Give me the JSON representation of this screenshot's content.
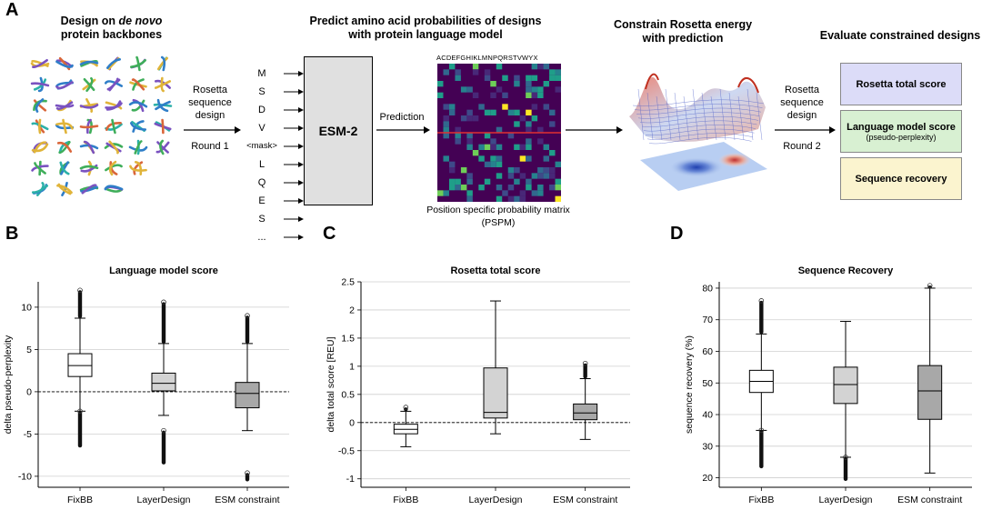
{
  "panel_letters": {
    "a": "A",
    "b": "B",
    "c": "C",
    "d": "D"
  },
  "panel_a": {
    "step1_title_pre": "Design on ",
    "step1_title_em": "de novo",
    "step1_title_line2": "protein backbones",
    "arrow1_label_l1": "Rosetta",
    "arrow1_label_l2": "sequence",
    "arrow1_label_l3": "design",
    "arrow1_round": "Round 1",
    "step2_title_l1": "Predict amino acid probabilities of designs",
    "step2_title_l2": "with protein language model",
    "tokens": [
      "M",
      "S",
      "D",
      "V",
      "<mask>",
      "L",
      "Q",
      "E",
      "S",
      "..."
    ],
    "model_name": "ESM-2",
    "prediction_label": "Prediction",
    "matrix_header": "ACDEFGHIKLMNPQRSTVWYX",
    "matrix_caption_l1": "Position specific probability matrix",
    "matrix_caption_l2": "(PSPM)",
    "step3_title_l1": "Constrain Rosetta energy",
    "step3_title_l2": "with prediction",
    "arrow2_label_l1": "Rosetta",
    "arrow2_label_l2": "sequence",
    "arrow2_label_l3": "design",
    "arrow2_round": "Round 2",
    "step4_title": "Evaluate constrained designs",
    "eval_boxes": [
      {
        "label": "Rosetta total score",
        "sub": "",
        "color": "#dcdcf8"
      },
      {
        "label": "Language model score",
        "sub": "(pseudo-perplexity)",
        "color": "#d8f0d2"
      },
      {
        "label": "Sequence recovery",
        "sub": "",
        "color": "#fbf4cf"
      }
    ]
  },
  "chart_data": [
    {
      "type": "box",
      "title": "Language model score",
      "ylabel": "delta pseudo-perplexity",
      "categories": [
        "FixBB",
        "LayerDesign",
        "ESM constraint"
      ],
      "ylim": [
        -11.3,
        13
      ],
      "yticks": [
        -10,
        -5,
        0,
        5,
        10
      ],
      "baseline": 0,
      "box_fill": [
        "#ffffff",
        "#d3d3d3",
        "#a8a8a8"
      ],
      "boxes": [
        {
          "whislo": -2.3,
          "q1": 1.8,
          "med": 3.1,
          "q3": 4.5,
          "whishi": 8.7,
          "fliers_high": [
            8.7,
            12
          ],
          "fliers_low": [
            -2.3,
            -6.6
          ]
        },
        {
          "whislo": -2.8,
          "q1": 0.1,
          "med": 1.0,
          "q3": 2.2,
          "whishi": 5.7,
          "fliers_high": [
            5.7,
            10.6
          ],
          "fliers_low": [
            -4.6,
            -8.6
          ]
        },
        {
          "whislo": -4.6,
          "q1": -1.9,
          "med": -0.2,
          "q3": 1.1,
          "whishi": 5.7,
          "fliers_high": [
            5.7,
            9.0
          ],
          "fliers_low": [
            -9.6,
            -10.6
          ]
        }
      ]
    },
    {
      "type": "box",
      "title": "Rosetta total score",
      "ylabel": "delta total score [REU]",
      "categories": [
        "FixBB",
        "LayerDesign",
        "ESM constraint"
      ],
      "ylim": [
        -1.15,
        2.5
      ],
      "yticks": [
        -1.0,
        -0.5,
        0.0,
        0.5,
        1.0,
        1.5,
        2.0,
        2.5
      ],
      "baseline": 0,
      "box_fill": [
        "#ffffff",
        "#d3d3d3",
        "#a8a8a8"
      ],
      "boxes": [
        {
          "whislo": -0.43,
          "q1": -0.2,
          "med": -0.12,
          "q3": -0.03,
          "whishi": 0.2,
          "fliers_high": [
            0.2,
            0.27
          ],
          "fliers_low": []
        },
        {
          "whislo": -0.2,
          "q1": 0.08,
          "med": 0.18,
          "q3": 0.97,
          "whishi": 2.16,
          "fliers_high": [],
          "fliers_low": []
        },
        {
          "whislo": -0.3,
          "q1": 0.05,
          "med": 0.17,
          "q3": 0.33,
          "whishi": 0.78,
          "fliers_high": [
            0.78,
            1.05
          ],
          "fliers_low": []
        }
      ]
    },
    {
      "type": "box",
      "title": "Sequence Recovery",
      "ylabel": "sequence recovery (%)",
      "categories": [
        "FixBB",
        "LayerDesign",
        "ESM constraint"
      ],
      "ylim": [
        17,
        82
      ],
      "yticks": [
        20,
        30,
        40,
        50,
        60,
        70,
        80
      ],
      "baseline": null,
      "box_fill": [
        "#ffffff",
        "#d3d3d3",
        "#a8a8a8"
      ],
      "boxes": [
        {
          "whislo": 35,
          "q1": 47,
          "med": 50.5,
          "q3": 54,
          "whishi": 65.5,
          "fliers_high": [
            65.5,
            76
          ],
          "fliers_low": [
            35,
            23
          ]
        },
        {
          "whislo": 26.5,
          "q1": 43.5,
          "med": 49.5,
          "q3": 55,
          "whishi": 69.5,
          "fliers_high": [],
          "fliers_low": [
            26.5,
            19
          ]
        },
        {
          "whislo": 21.5,
          "q1": 38.5,
          "med": 47.5,
          "q3": 55.5,
          "whishi": 80,
          "fliers_high": [
            80,
            80.8
          ],
          "fliers_low": []
        }
      ]
    }
  ]
}
